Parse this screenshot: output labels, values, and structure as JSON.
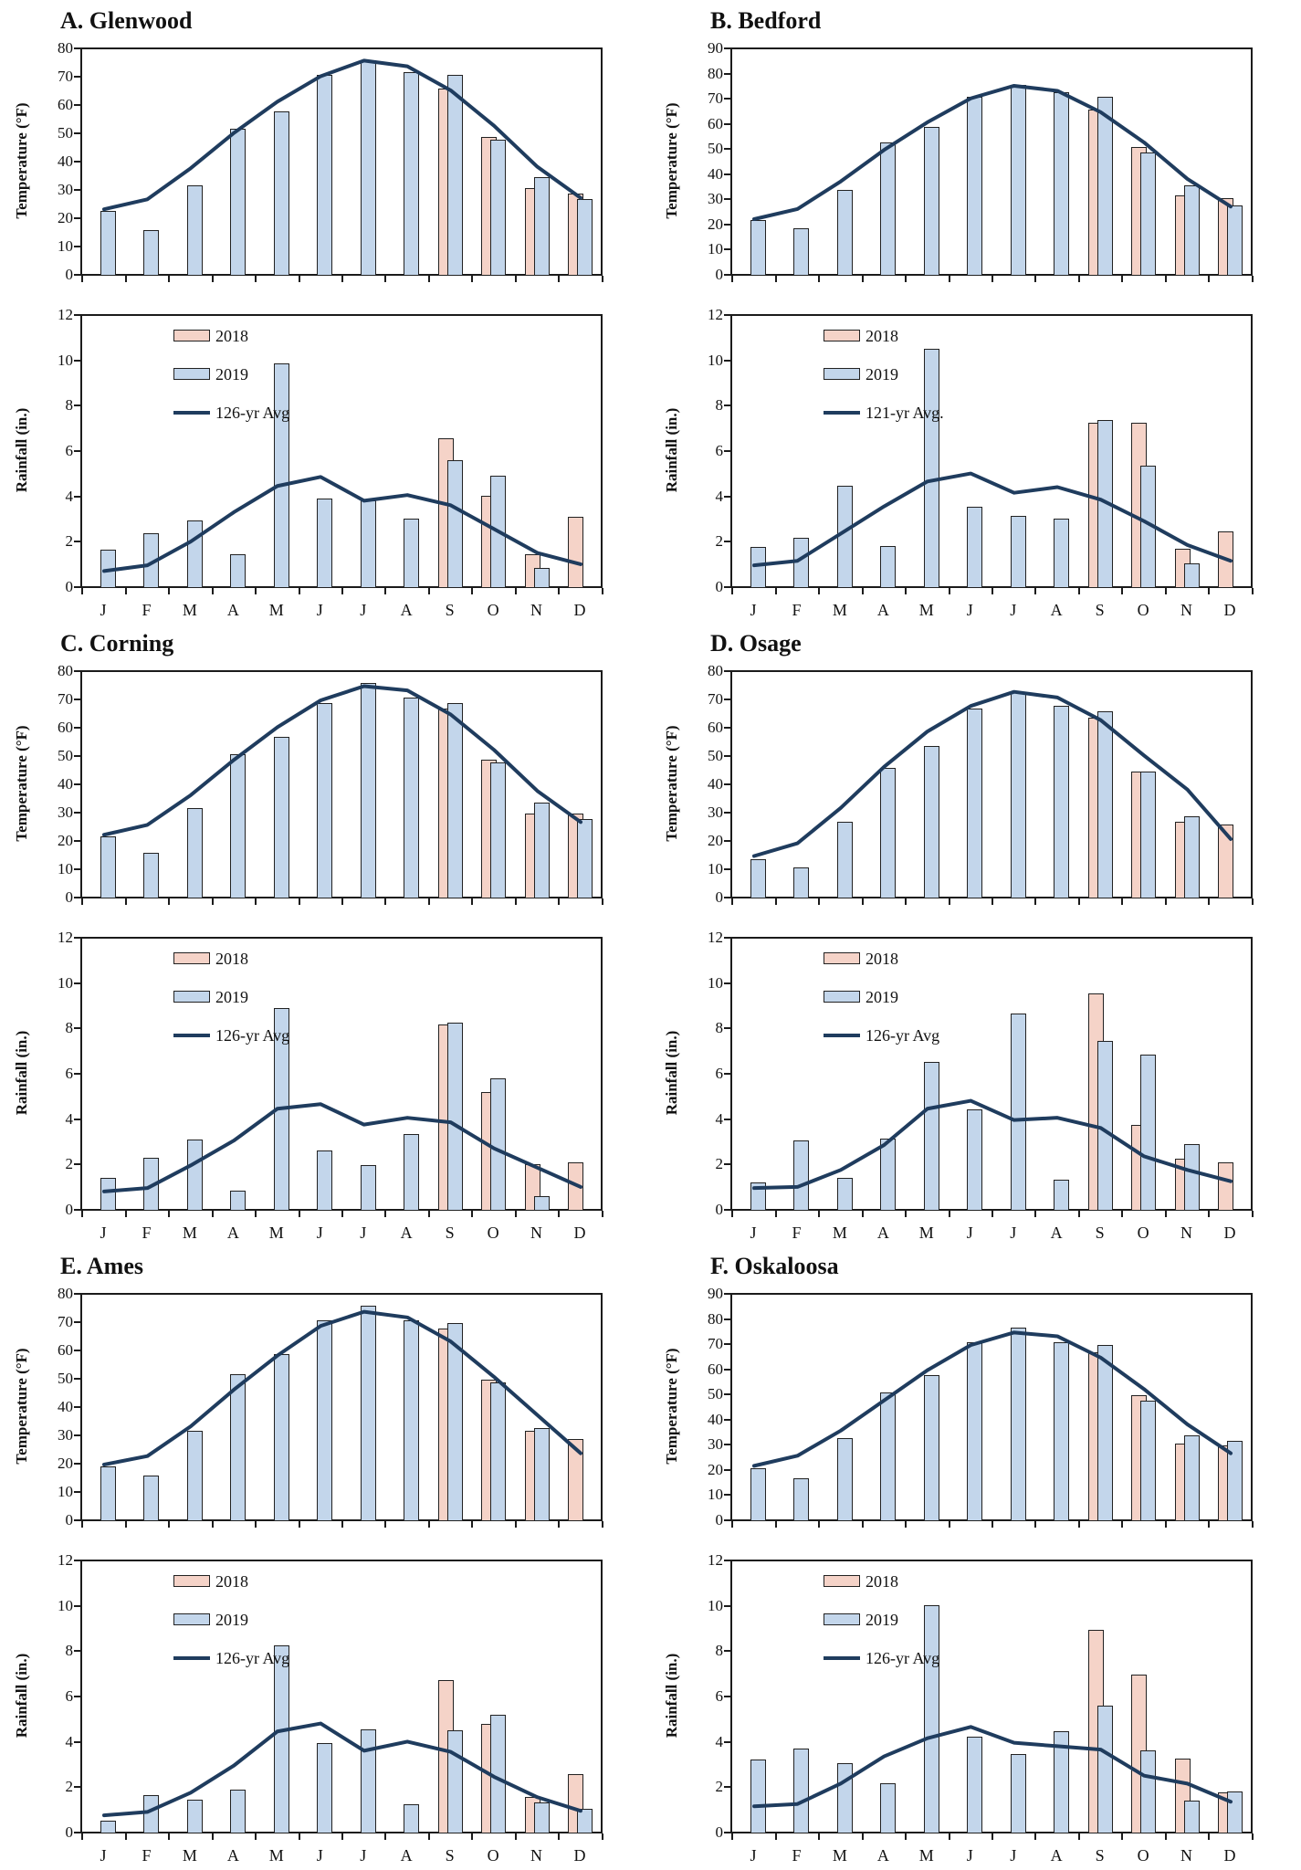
{
  "colors": {
    "bar_2018": "#F5D3C8",
    "bar_2019": "#C3D6EB",
    "avg_line": "#1F3C5E",
    "bar_border": "#222222",
    "axis": "#1b1b1b"
  },
  "labels": {
    "temp_axis": "Temperature (°F)",
    "rain_axis": "Rainfall (in.)",
    "legend_2018": "2018",
    "legend_2019": "2019"
  },
  "chart_data": {
    "type": "bar",
    "months": [
      "J",
      "F",
      "M",
      "A",
      "M",
      "J",
      "J",
      "A",
      "S",
      "O",
      "N",
      "D"
    ],
    "panels": [
      {
        "title": "A. Glenwood",
        "temperature": {
          "ymax": 80,
          "ystep": 10,
          "y2018": [
            null,
            null,
            null,
            null,
            null,
            null,
            null,
            null,
            66,
            49,
            31,
            29
          ],
          "y2019": [
            23,
            16,
            32,
            52,
            58,
            71,
            76,
            72,
            71,
            48,
            35,
            27
          ],
          "avg": [
            23.5,
            27,
            38,
            50.5,
            61.5,
            70.5,
            76,
            74,
            65.5,
            53,
            38.5,
            27.5
          ]
        },
        "rainfall": {
          "ymax": 12,
          "ystep": 2,
          "avg_label": "126-yr Avg",
          "y2018": [
            null,
            null,
            null,
            null,
            null,
            null,
            null,
            null,
            6.6,
            4.05,
            1.5,
            3.15
          ],
          "y2019": [
            1.7,
            2.4,
            3.0,
            1.5,
            9.9,
            3.95,
            3.85,
            3.05,
            5.65,
            4.95,
            0.9,
            null
          ],
          "avg": [
            0.75,
            1.0,
            2.05,
            3.35,
            4.5,
            4.9,
            3.85,
            4.1,
            3.65,
            2.6,
            1.55,
            1.05
          ]
        }
      },
      {
        "title": "B. Bedford",
        "temperature": {
          "ymax": 90,
          "ystep": 10,
          "y2018": [
            null,
            null,
            null,
            null,
            null,
            null,
            null,
            null,
            66,
            51,
            32,
            31
          ],
          "y2019": [
            22,
            19,
            34,
            53,
            59,
            71,
            76,
            73,
            71,
            49,
            36,
            28
          ],
          "avg": [
            22.5,
            26.5,
            37.5,
            50,
            61,
            70.5,
            75.5,
            73.5,
            65,
            53,
            38.5,
            27.5
          ]
        },
        "rainfall": {
          "ymax": 12,
          "ystep": 2,
          "avg_label": "121-yr Avg.",
          "y2018": [
            null,
            null,
            null,
            null,
            null,
            null,
            null,
            null,
            7.3,
            7.3,
            1.75,
            2.5
          ],
          "y2019": [
            1.8,
            2.2,
            4.5,
            1.85,
            10.55,
            3.6,
            3.2,
            3.05,
            7.4,
            5.4,
            1.1,
            null
          ],
          "avg": [
            1.0,
            1.2,
            2.4,
            3.6,
            4.7,
            5.05,
            4.2,
            4.45,
            3.9,
            2.95,
            1.9,
            1.2
          ]
        }
      },
      {
        "title": "C. Corning",
        "temperature": {
          "ymax": 80,
          "ystep": 10,
          "y2018": [
            null,
            null,
            null,
            null,
            null,
            null,
            null,
            null,
            67,
            49,
            30,
            30
          ],
          "y2019": [
            22,
            16,
            32,
            51,
            57,
            69,
            76,
            71,
            69,
            48,
            34,
            28
          ],
          "avg": [
            22.5,
            26,
            36.5,
            49,
            60.5,
            70,
            75,
            73.5,
            65,
            52.5,
            38,
            27
          ]
        },
        "rainfall": {
          "ymax": 12,
          "ystep": 2,
          "avg_label": "126-yr Avg",
          "y2018": [
            null,
            null,
            null,
            null,
            null,
            null,
            null,
            null,
            8.2,
            5.25,
            2.05,
            2.15
          ],
          "y2019": [
            1.45,
            2.35,
            3.15,
            0.9,
            8.95,
            2.65,
            2.0,
            3.4,
            8.3,
            5.85,
            0.65,
            null
          ],
          "avg": [
            0.85,
            1.0,
            2.0,
            3.1,
            4.5,
            4.7,
            3.8,
            4.1,
            3.9,
            2.75,
            1.9,
            1.05
          ]
        }
      },
      {
        "title": "D. Osage",
        "temperature": {
          "ymax": 80,
          "ystep": 10,
          "y2018": [
            null,
            null,
            null,
            null,
            null,
            null,
            null,
            null,
            64,
            45,
            27,
            26
          ],
          "y2019": [
            14,
            11,
            27,
            46,
            54,
            67,
            73,
            68,
            66,
            45,
            29,
            null
          ],
          "avg": [
            15,
            19.5,
            32,
            46.5,
            59,
            68,
            73,
            71,
            63,
            50.5,
            38.5,
            21
          ]
        },
        "rainfall": {
          "ymax": 12,
          "ystep": 2,
          "avg_label": "126-yr Avg",
          "y2018": [
            null,
            null,
            null,
            null,
            null,
            null,
            null,
            null,
            9.6,
            3.8,
            2.3,
            2.15
          ],
          "y2019": [
            1.25,
            3.1,
            1.45,
            3.2,
            6.55,
            4.45,
            8.7,
            1.35,
            7.5,
            6.9,
            2.95,
            null
          ],
          "avg": [
            1.0,
            1.05,
            1.8,
            2.9,
            4.5,
            4.85,
            4.0,
            4.1,
            3.65,
            2.4,
            1.8,
            1.3
          ]
        }
      },
      {
        "title": "E. Ames",
        "temperature": {
          "ymax": 80,
          "ystep": 10,
          "y2018": [
            null,
            null,
            null,
            null,
            null,
            null,
            null,
            null,
            68,
            50,
            32,
            29
          ],
          "y2019": [
            19.5,
            16,
            32,
            52,
            59,
            71,
            76,
            71,
            70,
            49,
            33,
            null
          ],
          "avg": [
            20,
            23,
            33.5,
            46.5,
            58.5,
            69,
            74,
            72,
            63.5,
            51,
            37.5,
            24
          ]
        },
        "rainfall": {
          "ymax": 12,
          "ystep": 2,
          "avg_label": "126-yr Avg",
          "y2018": [
            null,
            null,
            null,
            null,
            null,
            null,
            null,
            null,
            6.75,
            4.85,
            1.6,
            2.6
          ],
          "y2019": [
            0.55,
            1.7,
            1.5,
            1.95,
            8.3,
            4.0,
            4.6,
            1.3,
            4.55,
            5.25,
            1.35,
            1.1
          ],
          "avg": [
            0.8,
            0.95,
            1.8,
            3.0,
            4.5,
            4.85,
            3.65,
            4.05,
            3.6,
            2.5,
            1.6,
            1.0
          ]
        }
      },
      {
        "title": "F. Oskaloosa",
        "temperature": {
          "ymax": 90,
          "ystep": 10,
          "y2018": [
            null,
            null,
            null,
            null,
            null,
            null,
            null,
            null,
            67,
            50,
            31,
            30
          ],
          "y2019": [
            21,
            17,
            33,
            51,
            58,
            71,
            77,
            71,
            70,
            48,
            34,
            32
          ],
          "avg": [
            22,
            26,
            36,
            48,
            60,
            70,
            75,
            73.5,
            65,
            52.5,
            38.5,
            27
          ]
        },
        "rainfall": {
          "ymax": 12,
          "ystep": 2,
          "avg_label": "126-yr Avg",
          "y2018": [
            null,
            null,
            null,
            null,
            null,
            null,
            null,
            null,
            9.0,
            7.0,
            3.3,
            1.8
          ],
          "y2019": [
            3.25,
            3.75,
            3.1,
            2.2,
            10.05,
            4.25,
            3.5,
            4.5,
            5.65,
            3.65,
            1.45,
            1.85
          ],
          "avg": [
            1.2,
            1.3,
            2.2,
            3.4,
            4.2,
            4.7,
            4.0,
            3.85,
            3.7,
            2.55,
            2.2,
            1.4
          ]
        }
      }
    ]
  }
}
